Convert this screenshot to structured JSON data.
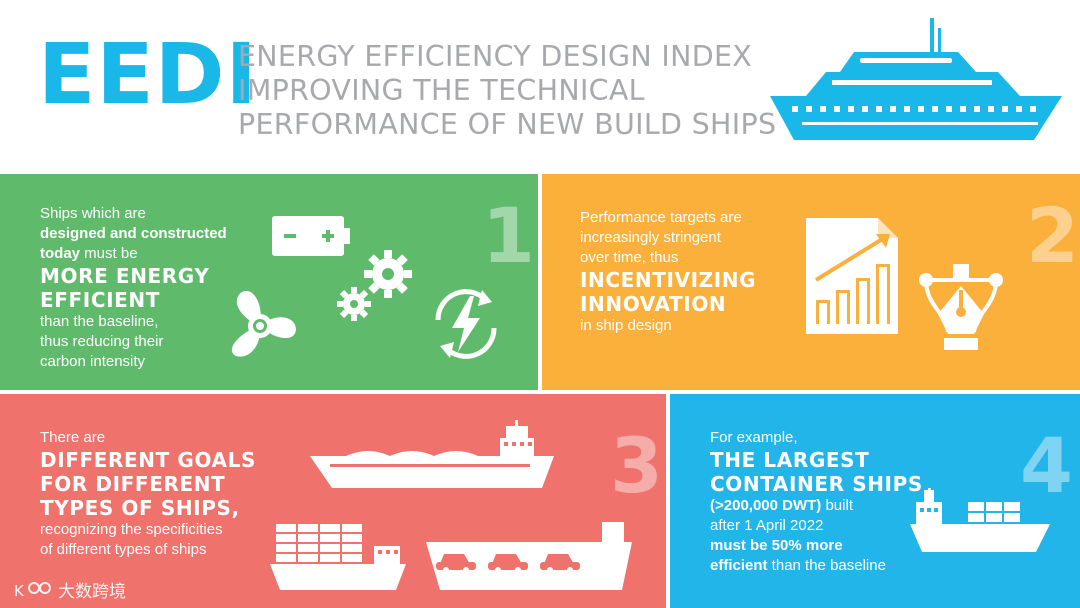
{
  "header": {
    "acronym": "EEDI",
    "subtitle_lines": [
      "ENERGY EFFICIENCY DESIGN INDEX",
      "IMPROVING THE TECHNICAL",
      "PERFORMANCE OF NEW BUILD SHIPS"
    ]
  },
  "colors": {
    "brand_blue": "#1ab8e8",
    "green": "#5fbb6b",
    "orange": "#fbb03b",
    "red": "#f0726d",
    "blue": "#22b5e9",
    "grey_text": "#a7a9ac"
  },
  "panel1": {
    "number": "1",
    "line1": "Ships which are",
    "line2": "designed and constructed",
    "line3_bold": "today",
    "line3_rest": " must be",
    "emphasis1": "MORE ENERGY",
    "emphasis2": "EFFICIENT",
    "line4": "than the baseline,",
    "line5": "thus reducing their",
    "line6": "carbon intensity",
    "icons": [
      "battery-icon",
      "gears-icon",
      "propeller-icon",
      "renewable-energy-icon"
    ]
  },
  "panel2": {
    "number": "2",
    "line1": "Performance targets are",
    "line2": "increasingly stringent",
    "line3": "over time, thus",
    "emphasis1": "INCENTIVIZING",
    "emphasis2": "INNOVATION",
    "line4": "in ship design",
    "icons": [
      "growth-chart-icon",
      "pen-tool-icon"
    ]
  },
  "panel3": {
    "number": "3",
    "line1": "There are",
    "emphasis1": "DIFFERENT GOALS",
    "emphasis2": "FOR DIFFERENT",
    "emphasis3": "TYPES OF SHIPS,",
    "line2": "recognizing the specificities",
    "line3": "of different types of ships",
    "icons": [
      "bulk-carrier-icon",
      "container-ship-icon",
      "car-carrier-icon"
    ]
  },
  "panel4": {
    "number": "4",
    "line1": "For example,",
    "emphasis1": "THE LARGEST",
    "emphasis2": "CONTAINER SHIPS",
    "line2_bold": "(>200,000 DWT)",
    "line2_rest": "  built",
    "line3": "after 1 April 2022",
    "line4": "must be 50% more",
    "line5_bold": "efficient",
    "line5_rest": " than the baseline",
    "icons": [
      "container-ship-icon"
    ]
  },
  "watermark": {
    "text": "大数跨境"
  }
}
